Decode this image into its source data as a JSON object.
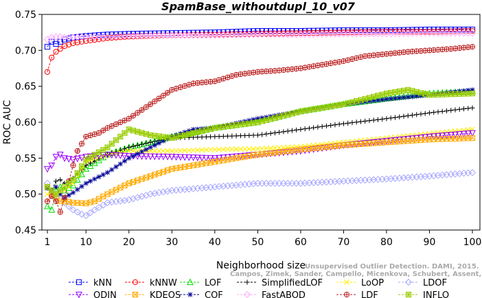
{
  "chart_data": {
    "type": "line",
    "title": "SpamBase_withoutdupl_10_v07",
    "xlabel": "Neighborhood size",
    "ylabel": "ROC AUC",
    "xlim": [
      1,
      100
    ],
    "ylim": [
      0.45,
      0.75
    ],
    "xticks": [
      "1",
      "10",
      "20",
      "30",
      "40",
      "50",
      "60",
      "70",
      "80",
      "90",
      "100"
    ],
    "yticks": [
      "0.45",
      "0.50",
      "0.55",
      "0.60",
      "0.65",
      "0.70",
      "0.75"
    ],
    "grid": false,
    "legend_position": "bottom",
    "credit": [
      "Unsupervised Outlier Detection. DAMI, 2015.",
      "Campos, Zimek, Sander, Campello, Micenkova, Schubert, Assent, Houle"
    ],
    "series": [
      {
        "name": "kNN",
        "color": "#0000ff",
        "marker": "square",
        "x": [
          1,
          2,
          3,
          4,
          5,
          7,
          10,
          15,
          20,
          30,
          40,
          50,
          60,
          70,
          80,
          90,
          100
        ],
        "values": [
          0.705,
          0.712,
          0.709,
          0.712,
          0.715,
          0.718,
          0.72,
          0.722,
          0.723,
          0.724,
          0.725,
          0.727,
          0.727,
          0.728,
          0.728,
          0.729,
          0.729
        ]
      },
      {
        "name": "kNNW",
        "color": "#ff0000",
        "marker": "circle",
        "x": [
          1,
          2,
          3,
          4,
          5,
          7,
          10,
          15,
          20,
          30,
          40,
          50,
          60,
          70,
          80,
          90,
          100
        ],
        "values": [
          0.67,
          0.69,
          0.698,
          0.702,
          0.706,
          0.71,
          0.713,
          0.717,
          0.719,
          0.721,
          0.722,
          0.723,
          0.724,
          0.725,
          0.726,
          0.726,
          0.727
        ]
      },
      {
        "name": "LOF",
        "color": "#00dd00",
        "marker": "triangle-up",
        "x": [
          1,
          2,
          3,
          4,
          5,
          7,
          10,
          15,
          20,
          25,
          30,
          40,
          50,
          60,
          70,
          80,
          90,
          100
        ],
        "values": [
          0.483,
          0.478,
          0.505,
          0.51,
          0.505,
          0.512,
          0.535,
          0.555,
          0.565,
          0.572,
          0.58,
          0.592,
          0.6,
          0.615,
          0.625,
          0.633,
          0.64,
          0.643
        ]
      },
      {
        "name": "SimplifiedLOF",
        "color": "#000000",
        "marker": "plus",
        "x": [
          1,
          2,
          3,
          4,
          5,
          7,
          10,
          15,
          20,
          25,
          30,
          40,
          50,
          60,
          70,
          80,
          90,
          100
        ],
        "values": [
          0.51,
          0.505,
          0.518,
          0.52,
          0.515,
          0.522,
          0.54,
          0.555,
          0.565,
          0.572,
          0.578,
          0.58,
          0.582,
          0.59,
          0.598,
          0.605,
          0.613,
          0.62
        ]
      },
      {
        "name": "LoOP",
        "color": "#ffee00",
        "marker": "x",
        "x": [
          1,
          2,
          3,
          4,
          5,
          7,
          10,
          15,
          20,
          25,
          30,
          40,
          50,
          60,
          70,
          80,
          90,
          100
        ],
        "values": [
          0.5,
          0.505,
          0.502,
          0.5,
          0.505,
          0.515,
          0.545,
          0.555,
          0.56,
          0.56,
          0.56,
          0.562,
          0.563,
          0.566,
          0.572,
          0.578,
          0.584,
          0.59
        ]
      },
      {
        "name": "LDOF",
        "color": "#a8a8ff",
        "marker": "diamond",
        "x": [
          1,
          2,
          3,
          5,
          7,
          9,
          10,
          12,
          15,
          20,
          25,
          30,
          40,
          50,
          60,
          70,
          80,
          90,
          100
        ],
        "values": [
          0.515,
          0.505,
          0.5,
          0.488,
          0.478,
          0.472,
          0.47,
          0.478,
          0.488,
          0.492,
          0.5,
          0.505,
          0.51,
          0.515,
          0.515,
          0.518,
          0.521,
          0.525,
          0.53
        ]
      },
      {
        "name": "ODIN",
        "color": "#9900ff",
        "marker": "triangle-down",
        "x": [
          1,
          2,
          3,
          4,
          5,
          7,
          10,
          15,
          20,
          30,
          40,
          50,
          60,
          70,
          80,
          90,
          100
        ],
        "values": [
          0.535,
          0.54,
          0.552,
          0.555,
          0.55,
          0.548,
          0.552,
          0.555,
          0.553,
          0.552,
          0.55,
          0.555,
          0.56,
          0.568,
          0.574,
          0.58,
          0.585
        ]
      },
      {
        "name": "KDEOS",
        "color": "#ffaa00",
        "marker": "square-x",
        "x": [
          1,
          2,
          3,
          4,
          5,
          7,
          10,
          12,
          15,
          20,
          25,
          30,
          40,
          50,
          60,
          70,
          80,
          90,
          100
        ],
        "values": [
          0.51,
          0.5,
          0.495,
          0.49,
          0.49,
          0.488,
          0.487,
          0.49,
          0.5,
          0.515,
          0.525,
          0.535,
          0.545,
          0.555,
          0.562,
          0.568,
          0.572,
          0.576,
          0.578
        ]
      },
      {
        "name": "COF",
        "color": "#000099",
        "marker": "asterisk",
        "x": [
          1,
          2,
          3,
          4,
          5,
          7,
          10,
          15,
          20,
          25,
          30,
          35,
          40,
          50,
          60,
          70,
          80,
          90,
          100
        ],
        "values": [
          0.508,
          0.505,
          0.51,
          0.5,
          0.495,
          0.502,
          0.515,
          0.53,
          0.55,
          0.565,
          0.58,
          0.59,
          0.592,
          0.605,
          0.615,
          0.625,
          0.632,
          0.638,
          0.645
        ]
      },
      {
        "name": "FastABOD",
        "color": "#ffaaff",
        "marker": "diamond",
        "x": [
          1,
          2,
          3,
          4,
          5,
          7,
          10,
          15,
          20,
          30,
          40,
          50,
          60,
          70,
          80,
          90,
          100
        ],
        "values": [
          0.715,
          0.718,
          0.719,
          0.719,
          0.718,
          0.718,
          0.719,
          0.719,
          0.72,
          0.721,
          0.721,
          0.722,
          0.722,
          0.723,
          0.723,
          0.724,
          0.724
        ]
      },
      {
        "name": "LDF",
        "color": "#bb2222",
        "marker": "circle-plus",
        "x": [
          1,
          2,
          3,
          4,
          5,
          6,
          7,
          8,
          10,
          13,
          15,
          20,
          25,
          30,
          35,
          40,
          45,
          50,
          55,
          60,
          65,
          70,
          75,
          80,
          85,
          90,
          95,
          100
        ],
        "values": [
          0.49,
          0.497,
          0.49,
          0.475,
          0.495,
          0.518,
          0.54,
          0.56,
          0.58,
          0.585,
          0.592,
          0.605,
          0.625,
          0.645,
          0.654,
          0.657,
          0.666,
          0.67,
          0.672,
          0.675,
          0.68,
          0.685,
          0.692,
          0.695,
          0.698,
          0.7,
          0.702,
          0.705
        ]
      },
      {
        "name": "INFLO",
        "color": "#99cc00",
        "marker": "square-star",
        "x": [
          1,
          2,
          3,
          4,
          5,
          7,
          10,
          15,
          20,
          25,
          30,
          40,
          50,
          60,
          70,
          80,
          85,
          90,
          100
        ],
        "values": [
          0.51,
          0.505,
          0.5,
          0.505,
          0.51,
          0.52,
          0.548,
          0.565,
          0.59,
          0.582,
          0.578,
          0.592,
          0.6,
          0.615,
          0.625,
          0.64,
          0.645,
          0.638,
          0.64
        ]
      }
    ],
    "legend_rows": [
      [
        "kNN",
        "kNNW",
        "LOF",
        "SimplifiedLOF",
        "LoOP",
        "LDOF"
      ],
      [
        "ODIN",
        "KDEOS",
        "COF",
        "FastABOD",
        "LDF",
        "INFLO"
      ]
    ]
  }
}
